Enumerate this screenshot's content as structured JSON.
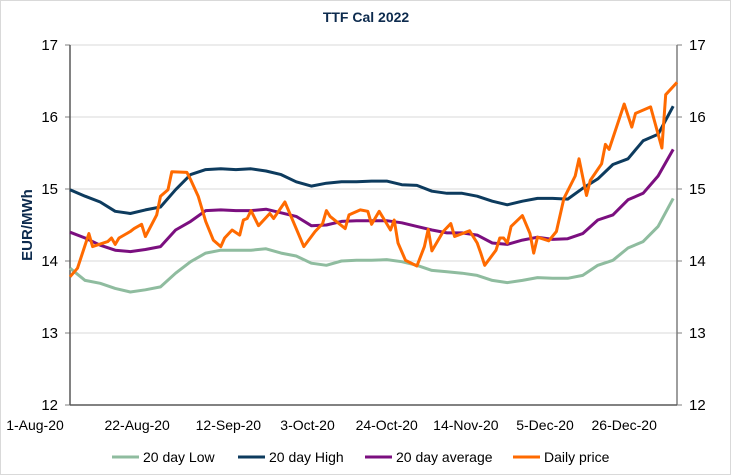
{
  "chart_data": {
    "type": "line",
    "title": "TTF Cal 2022",
    "ylabel": "EUR/MWh",
    "ylabel_right": "",
    "xlabel": "",
    "ylim": [
      12,
      17
    ],
    "yticks": [
      "12",
      "13",
      "14",
      "15",
      "16",
      "17"
    ],
    "xlim": [
      "2020-08-01",
      "2021-01-09"
    ],
    "xticks": [
      {
        "date": "2020-08-01",
        "label": "1-Aug-20"
      },
      {
        "date": "2020-08-22",
        "label": "22-Aug-20"
      },
      {
        "date": "2020-09-12",
        "label": "12-Sep-20"
      },
      {
        "date": "2020-10-03",
        "label": "3-Oct-20"
      },
      {
        "date": "2020-10-24",
        "label": "24-Oct-20"
      },
      {
        "date": "2020-11-14",
        "label": "14-Nov-20"
      },
      {
        "date": "2020-12-05",
        "label": "5-Dec-20"
      },
      {
        "date": "2020-12-26",
        "label": "26-Dec-20"
      }
    ],
    "grid": "horizontal",
    "legend_position": "bottom",
    "x": [
      "2020-08-01",
      "2020-08-05",
      "2020-08-09",
      "2020-08-13",
      "2020-08-17",
      "2020-08-21",
      "2020-08-25",
      "2020-08-29",
      "2020-09-02",
      "2020-09-06",
      "2020-09-10",
      "2020-09-14",
      "2020-09-18",
      "2020-09-22",
      "2020-09-26",
      "2020-09-30",
      "2020-10-04",
      "2020-10-08",
      "2020-10-12",
      "2020-10-16",
      "2020-10-20",
      "2020-10-24",
      "2020-10-28",
      "2020-11-01",
      "2020-11-05",
      "2020-11-09",
      "2020-11-13",
      "2020-11-17",
      "2020-11-21",
      "2020-11-25",
      "2020-11-29",
      "2020-12-03",
      "2020-12-07",
      "2020-12-11",
      "2020-12-15",
      "2020-12-19",
      "2020-12-23",
      "2020-12-27",
      "2020-12-31",
      "2021-01-04",
      "2021-01-08"
    ],
    "series": [
      {
        "name": "20 day Low",
        "color": "#8fbc9f",
        "values": [
          13.9,
          13.73,
          13.69,
          13.62,
          13.57,
          13.6,
          13.64,
          13.83,
          13.99,
          14.11,
          14.15,
          14.15,
          14.15,
          14.17,
          14.11,
          14.07,
          13.97,
          13.94,
          14.0,
          14.01,
          14.01,
          14.02,
          13.99,
          13.94,
          13.87,
          13.85,
          13.83,
          13.8,
          13.73,
          13.7,
          13.73,
          13.77,
          13.76,
          13.76,
          13.8,
          13.94,
          14.01,
          14.18,
          14.27,
          14.48,
          14.87
        ]
      },
      {
        "name": "20 day High",
        "color": "#0d3b5e",
        "values": [
          14.99,
          14.9,
          14.82,
          14.69,
          14.66,
          14.71,
          14.75,
          14.99,
          15.2,
          15.27,
          15.28,
          15.27,
          15.28,
          15.25,
          15.2,
          15.1,
          15.04,
          15.08,
          15.1,
          15.1,
          15.11,
          15.11,
          15.06,
          15.05,
          14.97,
          14.94,
          14.94,
          14.9,
          14.83,
          14.78,
          14.83,
          14.87,
          14.87,
          14.86,
          15.01,
          15.14,
          15.34,
          15.42,
          15.67,
          15.76,
          16.15
        ]
      },
      {
        "name": "20 day average",
        "color": "#7b0f7f",
        "values": [
          14.4,
          14.32,
          14.22,
          14.15,
          14.13,
          14.16,
          14.2,
          14.43,
          14.55,
          14.7,
          14.71,
          14.7,
          14.7,
          14.72,
          14.67,
          14.62,
          14.49,
          14.5,
          14.55,
          14.56,
          14.56,
          14.56,
          14.53,
          14.48,
          14.43,
          14.39,
          14.39,
          14.36,
          14.25,
          14.23,
          14.29,
          14.33,
          14.3,
          14.31,
          14.38,
          14.57,
          14.64,
          14.85,
          14.94,
          15.18,
          15.55
        ]
      },
      {
        "name": "Daily price",
        "color": "#ff6a00",
        "x": [
          "2020-08-01",
          "2020-08-03",
          "2020-08-06",
          "2020-08-07",
          "2020-08-11",
          "2020-08-12",
          "2020-08-13",
          "2020-08-14",
          "2020-08-17",
          "2020-08-18",
          "2020-08-20",
          "2020-08-21",
          "2020-08-24",
          "2020-08-25",
          "2020-08-27",
          "2020-08-28",
          "2020-09-01",
          "2020-09-02",
          "2020-09-04",
          "2020-09-06",
          "2020-09-08",
          "2020-09-10",
          "2020-09-11",
          "2020-09-13",
          "2020-09-15",
          "2020-09-16",
          "2020-09-17",
          "2020-09-18",
          "2020-09-20",
          "2020-09-23",
          "2020-09-24",
          "2020-09-27",
          "2020-09-30",
          "2020-10-02",
          "2020-10-05",
          "2020-10-07",
          "2020-10-08",
          "2020-10-09",
          "2020-10-13",
          "2020-10-14",
          "2020-10-17",
          "2020-10-19",
          "2020-10-20",
          "2020-10-22",
          "2020-10-25",
          "2020-10-26",
          "2020-10-27",
          "2020-10-29",
          "2020-11-01",
          "2020-11-03",
          "2020-11-04",
          "2020-11-05",
          "2020-11-08",
          "2020-11-10",
          "2020-11-11",
          "2020-11-15",
          "2020-11-17",
          "2020-11-18",
          "2020-11-19",
          "2020-11-22",
          "2020-11-23",
          "2020-11-24",
          "2020-11-25",
          "2020-11-26",
          "2020-11-29",
          "2020-12-01",
          "2020-12-02",
          "2020-12-03",
          "2020-12-06",
          "2020-12-08",
          "2020-12-10",
          "2020-12-13",
          "2020-12-14",
          "2020-12-16",
          "2020-12-17",
          "2020-12-20",
          "2020-12-21",
          "2020-12-22",
          "2020-12-26",
          "2020-12-28",
          "2020-12-29",
          "2021-01-02",
          "2021-01-05",
          "2021-01-06",
          "2021-01-09"
        ],
        "values": [
          13.78,
          13.9,
          14.38,
          14.2,
          14.27,
          14.32,
          14.23,
          14.32,
          14.41,
          14.45,
          14.51,
          14.34,
          14.64,
          14.9,
          14.99,
          15.24,
          15.23,
          15.13,
          14.9,
          14.55,
          14.29,
          14.2,
          14.32,
          14.43,
          14.36,
          14.57,
          14.59,
          14.7,
          14.49,
          14.66,
          14.59,
          14.82,
          14.45,
          14.2,
          14.41,
          14.52,
          14.7,
          14.62,
          14.45,
          14.64,
          14.71,
          14.69,
          14.51,
          14.69,
          14.43,
          14.57,
          14.25,
          14.01,
          13.93,
          14.2,
          14.44,
          14.14,
          14.41,
          14.52,
          14.34,
          14.42,
          14.25,
          14.1,
          13.94,
          14.15,
          14.32,
          14.32,
          14.25,
          14.48,
          14.63,
          14.38,
          14.11,
          14.33,
          14.28,
          14.41,
          14.87,
          15.18,
          15.42,
          14.91,
          15.12,
          15.35,
          15.62,
          15.55,
          16.18,
          15.86,
          16.05,
          16.14,
          15.57,
          16.31,
          16.48
        ]
      }
    ]
  }
}
